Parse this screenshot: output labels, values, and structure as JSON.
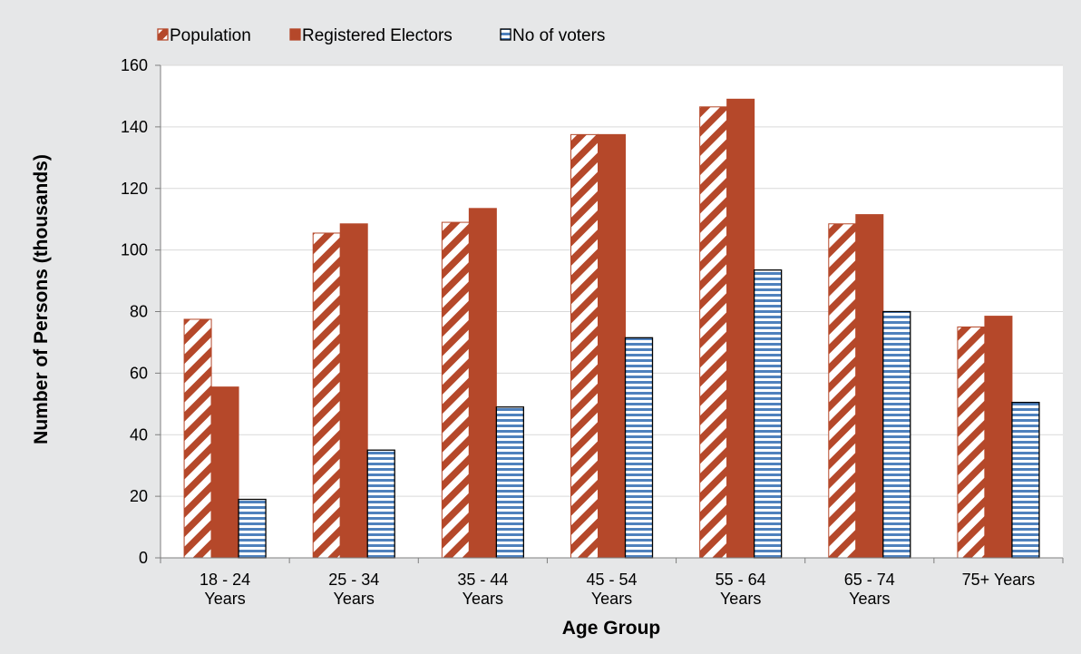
{
  "chart_data": {
    "type": "bar",
    "categories": [
      [
        "18 - 24",
        "Years"
      ],
      [
        "25 - 34",
        "Years"
      ],
      [
        "35 - 44",
        "Years"
      ],
      [
        "45 - 54",
        "Years"
      ],
      [
        "55 - 64",
        "Years"
      ],
      [
        "65 - 74",
        "Years"
      ],
      [
        "75+  Years"
      ]
    ],
    "series": [
      {
        "name": "Population",
        "values": [
          77.5,
          105.5,
          109,
          137.5,
          146.5,
          108.5,
          75
        ],
        "fill": "hatch-diagonal",
        "color": "#b5482a"
      },
      {
        "name": "Registered Electors",
        "values": [
          55.5,
          108.5,
          113.5,
          137.5,
          149,
          111.5,
          78.5
        ],
        "fill": "solid",
        "color": "#b5482a"
      },
      {
        "name": "No of voters",
        "values": [
          19,
          35,
          49,
          71.5,
          93.5,
          80,
          50.5
        ],
        "fill": "hatch-horizontal",
        "color": "#4f81bd"
      }
    ],
    "title": "",
    "xlabel": "Age Group",
    "ylabel": "Number of Persons (thousands)",
    "ylim": [
      0,
      160
    ],
    "yticks": [
      0,
      20,
      40,
      60,
      80,
      100,
      120,
      140,
      160
    ],
    "grid": true,
    "legend": "top-left"
  }
}
